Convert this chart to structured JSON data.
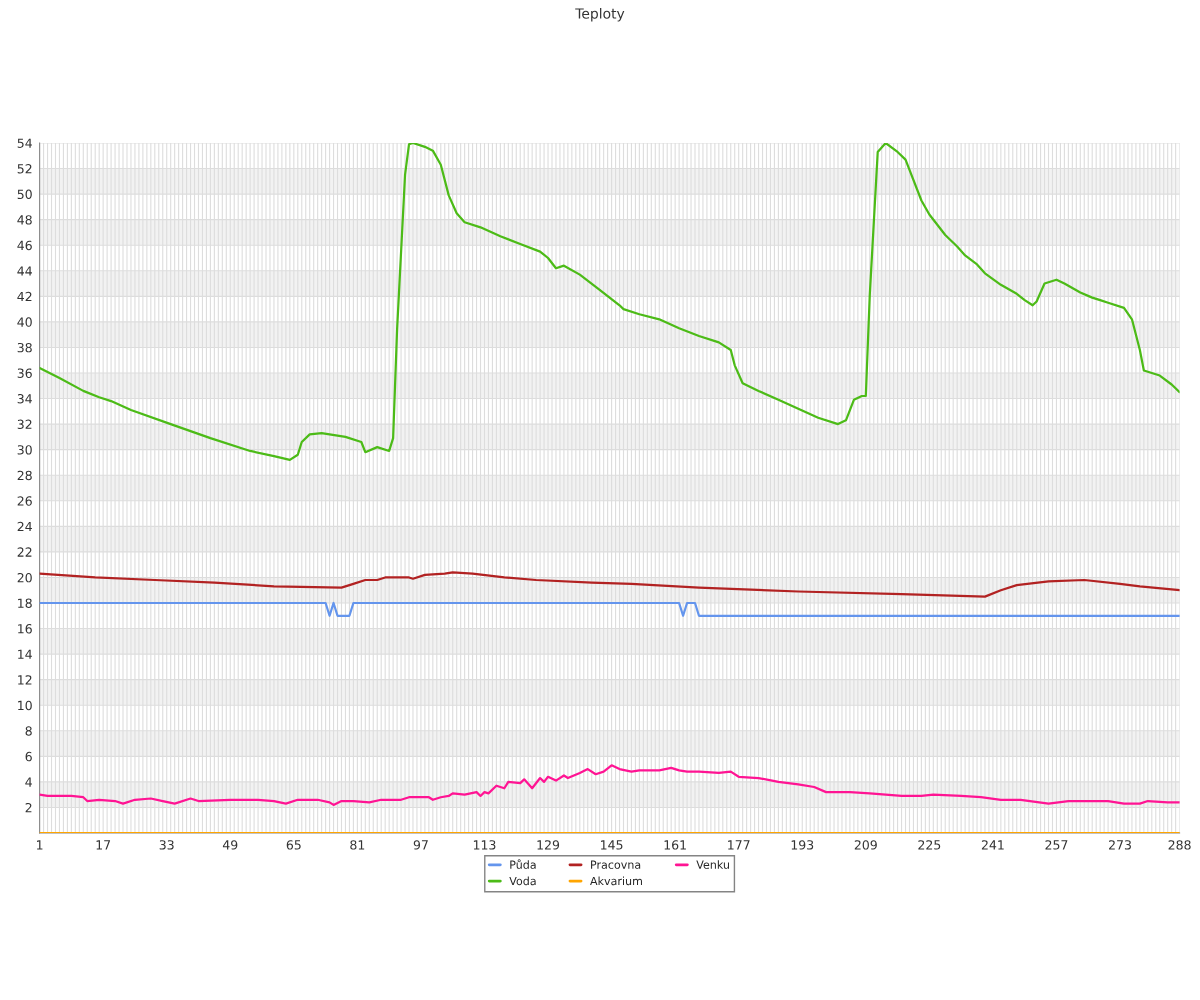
{
  "chart_data": {
    "type": "line",
    "title": "Teploty",
    "xlim": [
      1,
      288
    ],
    "xticks": [
      1,
      {
        "value": 2,
        "label": null
      },
      {
        "value": 3,
        "label": null
      },
      {
        "value": 4,
        "label": null
      },
      {
        "value": 5,
        "label": null
      },
      {
        "value": 6,
        "label": null
      },
      {
        "value": 7,
        "label": null
      },
      {
        "value": 8,
        "label": null
      },
      {
        "value": 9,
        "label": null
      },
      {
        "value": 10,
        "label": null
      },
      {
        "value": 11,
        "label": null
      },
      {
        "value": 12,
        "label": null
      },
      {
        "value": 13,
        "label": null
      },
      {
        "value": 14,
        "label": null
      },
      {
        "value": 15,
        "label": null
      },
      {
        "value": 16,
        "label": null
      },
      17,
      {
        "value": 18,
        "label": null
      },
      {
        "value": 19,
        "label": null
      },
      {
        "value": 20,
        "label": null
      },
      {
        "value": 21,
        "label": null
      },
      {
        "value": 22,
        "label": null
      },
      {
        "value": 23,
        "label": null
      },
      {
        "value": 24,
        "label": null
      },
      {
        "value": 25,
        "label": null
      },
      {
        "value": 26,
        "label": null
      },
      {
        "value": 27,
        "label": null
      },
      {
        "value": 28,
        "label": null
      },
      {
        "value": 29,
        "label": null
      },
      {
        "value": 30,
        "label": null
      },
      {
        "value": 31,
        "label": null
      },
      {
        "value": 32,
        "label": null
      },
      33,
      {
        "value": 34,
        "label": null
      },
      {
        "value": 35,
        "label": null
      },
      {
        "value": 36,
        "label": null
      },
      {
        "value": 37,
        "label": null
      },
      {
        "value": 38,
        "label": null
      },
      {
        "value": 39,
        "label": null
      },
      {
        "value": 40,
        "label": null
      },
      {
        "value": 41,
        "label": null
      },
      {
        "value": 42,
        "label": null
      },
      {
        "value": 43,
        "label": null
      },
      {
        "value": 44,
        "label": null
      },
      {
        "value": 45,
        "label": null
      },
      {
        "value": 46,
        "label": null
      },
      {
        "value": 47,
        "label": null
      },
      {
        "value": 48,
        "label": null
      },
      49,
      {
        "value": 50,
        "label": null
      },
      {
        "value": 51,
        "label": null
      },
      {
        "value": 52,
        "label": null
      },
      {
        "value": 53,
        "label": null
      },
      {
        "value": 54,
        "label": null
      },
      {
        "value": 55,
        "label": null
      },
      {
        "value": 56,
        "label": null
      },
      {
        "value": 57,
        "label": null
      },
      {
        "value": 58,
        "label": null
      },
      {
        "value": 59,
        "label": null
      },
      {
        "value": 60,
        "label": null
      },
      {
        "value": 61,
        "label": null
      },
      {
        "value": 62,
        "label": null
      },
      {
        "value": 63,
        "label": null
      },
      {
        "value": 64,
        "label": null
      },
      65,
      {
        "value": 66,
        "label": null
      },
      {
        "value": 67,
        "label": null
      },
      {
        "value": 68,
        "label": null
      },
      {
        "value": 69,
        "label": null
      },
      {
        "value": 70,
        "label": null
      },
      {
        "value": 71,
        "label": null
      },
      {
        "value": 72,
        "label": null
      },
      {
        "value": 73,
        "label": null
      },
      {
        "value": 74,
        "label": null
      },
      {
        "value": 75,
        "label": null
      },
      {
        "value": 76,
        "label": null
      },
      {
        "value": 77,
        "label": null
      },
      {
        "value": 78,
        "label": null
      },
      {
        "value": 79,
        "label": null
      },
      {
        "value": 80,
        "label": null
      },
      81,
      {
        "value": 82,
        "label": null
      },
      {
        "value": 83,
        "label": null
      },
      {
        "value": 84,
        "label": null
      },
      {
        "value": 85,
        "label": null
      },
      {
        "value": 86,
        "label": null
      },
      {
        "value": 87,
        "label": null
      },
      {
        "value": 88,
        "label": null
      },
      {
        "value": 89,
        "label": null
      },
      {
        "value": 90,
        "label": null
      },
      {
        "value": 91,
        "label": null
      },
      {
        "value": 92,
        "label": null
      },
      {
        "value": 93,
        "label": null
      },
      {
        "value": 94,
        "label": null
      },
      {
        "value": 95,
        "label": null
      },
      {
        "value": 96,
        "label": null
      },
      97,
      {
        "value": 98,
        "label": null
      },
      {
        "value": 99,
        "label": null
      },
      {
        "value": 100,
        "label": null
      },
      {
        "value": 101,
        "label": null
      },
      {
        "value": 102,
        "label": null
      },
      {
        "value": 103,
        "label": null
      },
      {
        "value": 104,
        "label": null
      },
      {
        "value": 105,
        "label": null
      },
      {
        "value": 106,
        "label": null
      },
      {
        "value": 107,
        "label": null
      },
      {
        "value": 108,
        "label": null
      },
      {
        "value": 109,
        "label": null
      },
      {
        "value": 110,
        "label": null
      },
      {
        "value": 111,
        "label": null
      },
      {
        "value": 112,
        "label": null
      },
      113,
      {
        "value": 114,
        "label": null
      },
      {
        "value": 115,
        "label": null
      },
      {
        "value": 116,
        "label": null
      },
      {
        "value": 117,
        "label": null
      },
      {
        "value": 118,
        "label": null
      },
      {
        "value": 119,
        "label": null
      },
      {
        "value": 120,
        "label": null
      },
      {
        "value": 121,
        "label": null
      },
      {
        "value": 122,
        "label": null
      },
      {
        "value": 123,
        "label": null
      },
      {
        "value": 124,
        "label": null
      },
      {
        "value": 125,
        "label": null
      },
      {
        "value": 126,
        "label": null
      },
      {
        "value": 127,
        "label": null
      },
      {
        "value": 128,
        "label": null
      },
      129,
      {
        "value": 130,
        "label": null
      },
      {
        "value": 131,
        "label": null
      },
      {
        "value": 132,
        "label": null
      },
      {
        "value": 133,
        "label": null
      },
      {
        "value": 134,
        "label": null
      },
      {
        "value": 135,
        "label": null
      },
      {
        "value": 136,
        "label": null
      },
      {
        "value": 137,
        "label": null
      },
      {
        "value": 138,
        "label": null
      },
      {
        "value": 139,
        "label": null
      },
      {
        "value": 140,
        "label": null
      },
      {
        "value": 141,
        "label": null
      },
      {
        "value": 142,
        "label": null
      },
      {
        "value": 143,
        "label": null
      },
      {
        "value": 144,
        "label": null
      },
      145,
      {
        "value": 146,
        "label": null
      },
      {
        "value": 147,
        "label": null
      },
      {
        "value": 148,
        "label": null
      },
      {
        "value": 149,
        "label": null
      },
      {
        "value": 150,
        "label": null
      },
      {
        "value": 151,
        "label": null
      },
      {
        "value": 152,
        "label": null
      },
      {
        "value": 153,
        "label": null
      },
      {
        "value": 154,
        "label": null
      },
      {
        "value": 155,
        "label": null
      },
      {
        "value": 156,
        "label": null
      },
      {
        "value": 157,
        "label": null
      },
      {
        "value": 158,
        "label": null
      },
      {
        "value": 159,
        "label": null
      },
      {
        "value": 160,
        "label": null
      },
      161,
      {
        "value": 162,
        "label": null
      },
      {
        "value": 163,
        "label": null
      },
      {
        "value": 164,
        "label": null
      },
      {
        "value": 165,
        "label": null
      },
      {
        "value": 166,
        "label": null
      },
      {
        "value": 167,
        "label": null
      },
      {
        "value": 168,
        "label": null
      },
      {
        "value": 169,
        "label": null
      },
      {
        "value": 170,
        "label": null
      },
      {
        "value": 171,
        "label": null
      },
      {
        "value": 172,
        "label": null
      },
      {
        "value": 173,
        "label": null
      },
      {
        "value": 174,
        "label": null
      },
      {
        "value": 175,
        "label": null
      },
      {
        "value": 176,
        "label": null
      },
      177,
      {
        "value": 178,
        "label": null
      },
      {
        "value": 179,
        "label": null
      },
      {
        "value": 180,
        "label": null
      },
      {
        "value": 181,
        "label": null
      },
      {
        "value": 182,
        "label": null
      },
      {
        "value": 183,
        "label": null
      },
      {
        "value": 184,
        "label": null
      },
      {
        "value": 185,
        "label": null
      },
      {
        "value": 186,
        "label": null
      },
      {
        "value": 187,
        "label": null
      },
      {
        "value": 188,
        "label": null
      },
      {
        "value": 189,
        "label": null
      },
      {
        "value": 190,
        "label": null
      },
      {
        "value": 191,
        "label": null
      },
      {
        "value": 192,
        "label": null
      },
      193,
      {
        "value": 194,
        "label": null
      },
      {
        "value": 195,
        "label": null
      },
      {
        "value": 196,
        "label": null
      },
      {
        "value": 197,
        "label": null
      },
      {
        "value": 198,
        "label": null
      },
      {
        "value": 199,
        "label": null
      },
      {
        "value": 200,
        "label": null
      },
      {
        "value": 201,
        "label": null
      },
      {
        "value": 202,
        "label": null
      },
      {
        "value": 203,
        "label": null
      },
      {
        "value": 204,
        "label": null
      },
      {
        "value": 205,
        "label": null
      },
      {
        "value": 206,
        "label": null
      },
      {
        "value": 207,
        "label": null
      },
      {
        "value": 208,
        "label": null
      },
      209,
      {
        "value": 210,
        "label": null
      },
      {
        "value": 211,
        "label": null
      },
      {
        "value": 212,
        "label": null
      },
      {
        "value": 213,
        "label": null
      },
      {
        "value": 214,
        "label": null
      },
      {
        "value": 215,
        "label": null
      },
      {
        "value": 216,
        "label": null
      },
      {
        "value": 217,
        "label": null
      },
      {
        "value": 218,
        "label": null
      },
      {
        "value": 219,
        "label": null
      },
      {
        "value": 220,
        "label": null
      },
      {
        "value": 221,
        "label": null
      },
      {
        "value": 222,
        "label": null
      },
      {
        "value": 223,
        "label": null
      },
      {
        "value": 224,
        "label": null
      },
      225,
      {
        "value": 226,
        "label": null
      },
      {
        "value": 227,
        "label": null
      },
      {
        "value": 228,
        "label": null
      },
      {
        "value": 229,
        "label": null
      },
      {
        "value": 230,
        "label": null
      },
      {
        "value": 231,
        "label": null
      },
      {
        "value": 232,
        "label": null
      },
      {
        "value": 233,
        "label": null
      },
      {
        "value": 234,
        "label": null
      },
      {
        "value": 235,
        "label": null
      },
      {
        "value": 236,
        "label": null
      },
      {
        "value": 237,
        "label": null
      },
      {
        "value": 238,
        "label": null
      },
      {
        "value": 239,
        "label": null
      },
      {
        "value": 240,
        "label": null
      },
      241,
      {
        "value": 242,
        "label": null
      },
      {
        "value": 243,
        "label": null
      },
      {
        "value": 244,
        "label": null
      },
      {
        "value": 245,
        "label": null
      },
      {
        "value": 246,
        "label": null
      },
      {
        "value": 247,
        "label": null
      },
      {
        "value": 248,
        "label": null
      },
      {
        "value": 249,
        "label": null
      },
      {
        "value": 250,
        "label": null
      },
      {
        "value": 251,
        "label": null
      },
      {
        "value": 252,
        "label": null
      },
      {
        "value": 253,
        "label": null
      },
      {
        "value": 254,
        "label": null
      },
      {
        "value": 255,
        "label": null
      },
      {
        "value": 256,
        "label": null
      },
      257,
      {
        "value": 258,
        "label": null
      },
      {
        "value": 259,
        "label": null
      },
      {
        "value": 260,
        "label": null
      },
      {
        "value": 261,
        "label": null
      },
      {
        "value": 262,
        "label": null
      },
      {
        "value": 263,
        "label": null
      },
      {
        "value": 264,
        "label": null
      },
      {
        "value": 265,
        "label": null
      },
      {
        "value": 266,
        "label": null
      },
      {
        "value": 267,
        "label": null
      },
      {
        "value": 268,
        "label": null
      },
      {
        "value": 269,
        "label": null
      },
      {
        "value": 270,
        "label": null
      },
      {
        "value": 271,
        "label": null
      },
      {
        "value": 272,
        "label": null
      },
      273,
      {
        "value": 274,
        "label": null
      },
      {
        "value": 275,
        "label": null
      },
      {
        "value": 276,
        "label": null
      },
      {
        "value": 277,
        "label": null
      },
      {
        "value": 278,
        "label": null
      },
      {
        "value": 279,
        "label": null
      },
      {
        "value": 280,
        "label": null
      },
      {
        "value": 281,
        "label": null
      },
      {
        "value": 282,
        "label": null
      },
      {
        "value": 283,
        "label": null
      },
      {
        "value": 284,
        "label": null
      },
      {
        "value": 285,
        "label": null
      },
      {
        "value": 286,
        "label": null
      },
      {
        "value": 287,
        "label": null
      },
      288
    ],
    "ylim": [
      0,
      54
    ],
    "yticks": [
      2,
      4,
      6,
      8,
      10,
      12,
      14,
      16,
      18,
      20,
      22,
      24,
      26,
      28,
      30,
      32,
      34,
      36,
      38,
      40,
      42,
      44,
      46,
      48,
      50,
      52,
      54
    ],
    "grid": true,
    "legend": "bottom",
    "marker": "none",
    "line_style": "solid",
    "series": [
      {
        "name": "Půda",
        "color": "#6495ed",
        "x": [
          1,
          73,
          74,
          75,
          76,
          79,
          80,
          162,
          163,
          164,
          166,
          167,
          288
        ],
        "values": [
          18,
          18,
          17,
          18,
          17,
          17,
          18,
          18,
          17,
          18,
          18,
          17,
          17
        ]
      },
      {
        "name": "Voda",
        "color": "#4cbb17",
        "x": [
          1,
          6,
          12,
          16,
          19,
          24,
          34,
          44,
          54,
          60,
          64,
          66,
          67,
          69,
          72,
          74,
          78,
          82,
          83,
          86,
          89,
          90,
          91,
          93,
          94,
          95,
          98,
          100,
          102,
          104,
          106,
          108,
          112,
          117,
          122,
          127,
          129,
          131,
          133,
          137,
          142,
          147,
          148,
          152,
          157,
          162,
          167,
          172,
          175,
          176,
          178,
          182,
          187,
          192,
          197,
          202,
          204,
          206,
          208,
          209,
          210,
          212,
          214,
          217,
          219,
          220,
          223,
          225,
          229,
          232,
          234,
          237,
          239,
          243,
          247,
          249,
          251,
          252,
          254,
          257,
          259,
          263,
          266,
          268,
          270,
          274,
          276,
          278,
          279,
          283,
          286,
          288
        ],
        "values": [
          36.4,
          35.6,
          34.6,
          34.1,
          33.8,
          33.1,
          32.0,
          30.9,
          29.9,
          29.5,
          29.2,
          29.6,
          30.6,
          31.2,
          31.3,
          31.2,
          31.0,
          30.6,
          29.8,
          30.2,
          29.9,
          30.9,
          39.4,
          51.5,
          53.9,
          54.0,
          53.7,
          53.4,
          52.3,
          49.9,
          48.5,
          47.8,
          47.4,
          46.7,
          46.1,
          45.5,
          45.0,
          44.2,
          44.4,
          43.7,
          42.5,
          41.3,
          41.0,
          40.6,
          40.2,
          39.5,
          38.9,
          38.4,
          37.8,
          36.6,
          35.2,
          34.6,
          33.9,
          33.2,
          32.5,
          32.0,
          32.3,
          33.9,
          34.2,
          34.2,
          42.1,
          53.3,
          54.0,
          53.3,
          52.7,
          51.9,
          49.5,
          48.4,
          46.8,
          45.9,
          45.2,
          44.5,
          43.8,
          42.9,
          42.2,
          41.7,
          41.3,
          41.6,
          43.0,
          43.3,
          43.0,
          42.3,
          41.9,
          41.7,
          41.5,
          41.1,
          40.2,
          37.8,
          36.2,
          35.8,
          35.1,
          34.5
        ]
      },
      {
        "name": "Pracovna",
        "color": "#b22222",
        "x": [
          1,
          15,
          30,
          45,
          60,
          77,
          80,
          83,
          86,
          88,
          94,
          95,
          98,
          103,
          105,
          110,
          118,
          126,
          140,
          150,
          167,
          192,
          218,
          239,
          243,
          247,
          255,
          264,
          273,
          278,
          288
        ],
        "values": [
          20.3,
          20.0,
          19.8,
          19.6,
          19.3,
          19.2,
          19.5,
          19.8,
          19.8,
          20.0,
          20.0,
          19.9,
          20.2,
          20.3,
          20.4,
          20.3,
          20.0,
          19.8,
          19.6,
          19.5,
          19.2,
          18.9,
          18.7,
          18.5,
          19.0,
          19.4,
          19.7,
          19.8,
          19.5,
          19.3,
          19.0
        ]
      },
      {
        "name": "Akvarium",
        "color": "#ffa500",
        "x": [
          1,
          288
        ],
        "values": [
          0,
          0
        ]
      },
      {
        "name": "Venku",
        "color": "#ff1493",
        "x": [
          1,
          3,
          9,
          12,
          13,
          16,
          20,
          22,
          25,
          29,
          32,
          35,
          39,
          41,
          49,
          56,
          60,
          63,
          66,
          71,
          74,
          75,
          77,
          80,
          84,
          87,
          92,
          94,
          99,
          100,
          102,
          104,
          105,
          108,
          111,
          112,
          113,
          114,
          116,
          118,
          119,
          122,
          123,
          125,
          127,
          128,
          129,
          131,
          133,
          134,
          137,
          139,
          141,
          143,
          145,
          147,
          150,
          152,
          157,
          160,
          162,
          164,
          167,
          172,
          175,
          177,
          182,
          187,
          192,
          196,
          199,
          205,
          210,
          218,
          223,
          226,
          233,
          238,
          243,
          248,
          255,
          260,
          265,
          270,
          274,
          278,
          280,
          285,
          288
        ],
        "values": [
          3.0,
          2.9,
          2.9,
          2.8,
          2.5,
          2.6,
          2.5,
          2.3,
          2.6,
          2.7,
          2.5,
          2.3,
          2.7,
          2.5,
          2.6,
          2.6,
          2.5,
          2.3,
          2.6,
          2.6,
          2.4,
          2.2,
          2.5,
          2.5,
          2.4,
          2.6,
          2.6,
          2.8,
          2.8,
          2.6,
          2.8,
          2.9,
          3.1,
          3.0,
          3.2,
          2.9,
          3.2,
          3.1,
          3.7,
          3.5,
          4.0,
          3.9,
          4.2,
          3.5,
          4.3,
          4.0,
          4.4,
          4.1,
          4.5,
          4.3,
          4.7,
          5.0,
          4.6,
          4.8,
          5.3,
          5.0,
          4.8,
          4.9,
          4.9,
          5.1,
          4.9,
          4.8,
          4.8,
          4.7,
          4.8,
          4.4,
          4.3,
          4.0,
          3.8,
          3.6,
          3.2,
          3.2,
          3.1,
          2.9,
          2.9,
          3.0,
          2.9,
          2.8,
          2.6,
          2.6,
          2.3,
          2.5,
          2.5,
          2.5,
          2.3,
          2.3,
          2.5,
          2.4,
          2.4
        ]
      }
    ]
  }
}
